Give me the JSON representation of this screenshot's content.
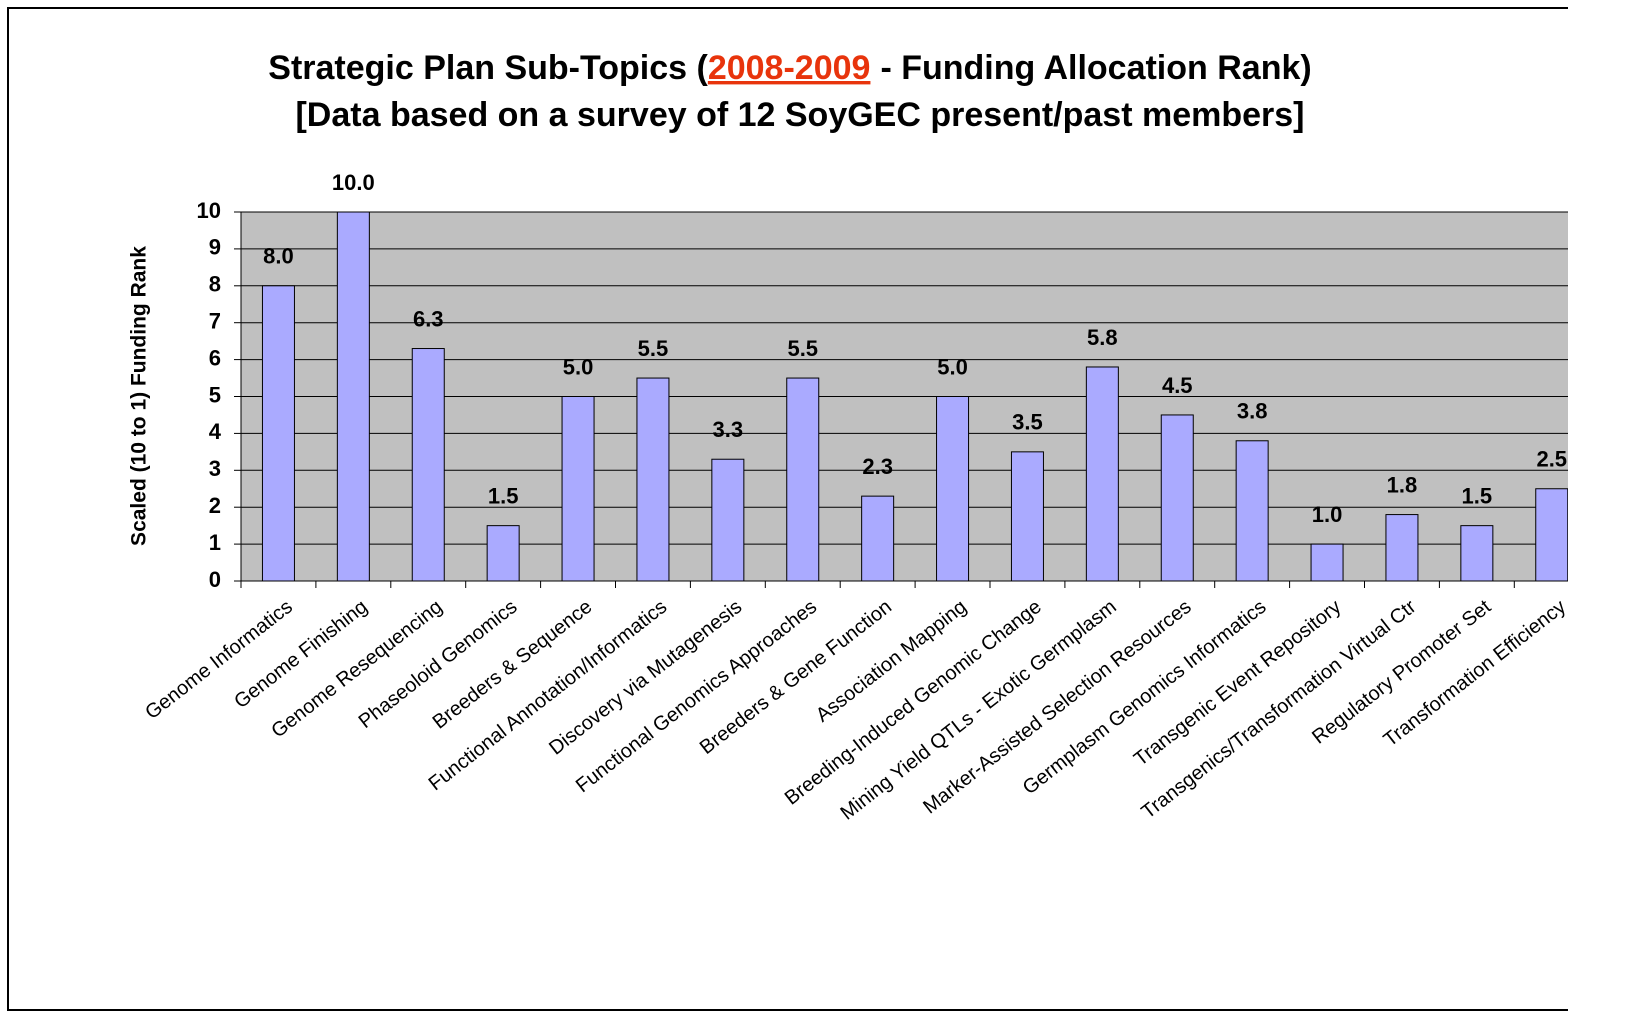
{
  "chart_data": {
    "type": "bar",
    "title": "Strategic Plan Sub-Topics (",
    "title_highlight": "2008-2009",
    "title_end": "- Funding Allocation Rank)",
    "subtitle": "[Data based on a survey of 12 SoyGEC present/past members]",
    "y_label": "Scaled (10 to 1) Funding Rank",
    "categories": [
      "Genome Informatics",
      "Genome Finishing",
      "Genome Resequencing",
      "Phaseoloid Genomics",
      "Breeders & Sequence",
      "Functional Annotation/Informatics",
      "Discovery via Mutagenesis",
      "Functional Genomics Approaches",
      "Breeders & Gene Function",
      "Association Mapping",
      "Breeding-Induced Genomic Change",
      "Mining Yield QTLs - Exotic Germplasm",
      "Marker-Assisted Selection Resources",
      "Germplasm Genomics Informatics",
      "Transgenic Event Repository",
      "Transgenics/Transformation Virtual Ctr",
      "Regulatory Promoter Set",
      "Transformation Efficiency"
    ],
    "values": [
      8.0,
      10.0,
      6.3,
      1.5,
      5.0,
      5.5,
      3.3,
      5.5,
      2.3,
      5.0,
      3.5,
      5.8,
      4.5,
      3.8,
      1.0,
      1.8,
      1.5,
      2.5
    ],
    "value_labels": [
      "8.0",
      "10.0",
      "6.3",
      "1.5",
      "5.0",
      "5.5",
      "3.3",
      "5.5",
      "2.3",
      "5.0",
      "3.5",
      "5.8",
      "4.5",
      "3.8",
      "1.0",
      "1.8",
      "1.5",
      "2.5"
    ],
    "color": "#aaaaff",
    "ylim": [
      0,
      10
    ],
    "yticks": [
      0,
      1,
      2,
      3,
      4,
      5,
      6,
      7,
      8,
      9,
      10
    ],
    "grid": true
  }
}
